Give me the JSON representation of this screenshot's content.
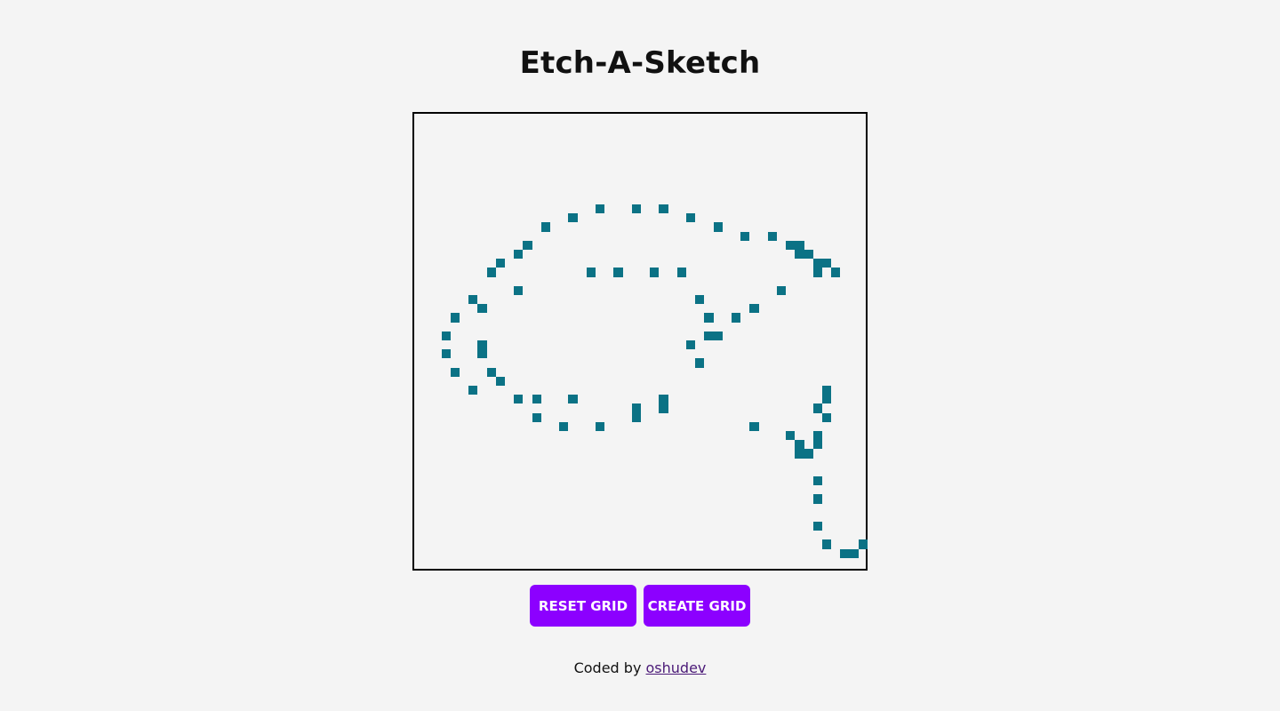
{
  "title": "Etch-A-Sketch",
  "grid": {
    "size": 50,
    "fill_color": "#0b7285",
    "background_color": "#f4f4f4",
    "filled_cells": [
      [
        20,
        10
      ],
      [
        24,
        10
      ],
      [
        27,
        10
      ],
      [
        17,
        11
      ],
      [
        30,
        11
      ],
      [
        14,
        12
      ],
      [
        33,
        12
      ],
      [
        36,
        13
      ],
      [
        39,
        13
      ],
      [
        12,
        14
      ],
      [
        41,
        14
      ],
      [
        42,
        14
      ],
      [
        11,
        15
      ],
      [
        42,
        15
      ],
      [
        43,
        15
      ],
      [
        9,
        16
      ],
      [
        44,
        16
      ],
      [
        45,
        16
      ],
      [
        8,
        17
      ],
      [
        19,
        17
      ],
      [
        22,
        17
      ],
      [
        26,
        17
      ],
      [
        29,
        17
      ],
      [
        44,
        17
      ],
      [
        46,
        17
      ],
      [
        11,
        19
      ],
      [
        40,
        19
      ],
      [
        6,
        20
      ],
      [
        31,
        20
      ],
      [
        7,
        21
      ],
      [
        37,
        21
      ],
      [
        4,
        22
      ],
      [
        32,
        22
      ],
      [
        35,
        22
      ],
      [
        3,
        24
      ],
      [
        32,
        24
      ],
      [
        33,
        24
      ],
      [
        7,
        25
      ],
      [
        30,
        25
      ],
      [
        3,
        26
      ],
      [
        7,
        26
      ],
      [
        31,
        27
      ],
      [
        4,
        28
      ],
      [
        8,
        28
      ],
      [
        9,
        29
      ],
      [
        6,
        30
      ],
      [
        45,
        30
      ],
      [
        11,
        31
      ],
      [
        13,
        31
      ],
      [
        17,
        31
      ],
      [
        27,
        31
      ],
      [
        45,
        31
      ],
      [
        24,
        32
      ],
      [
        27,
        32
      ],
      [
        44,
        32
      ],
      [
        13,
        33
      ],
      [
        24,
        33
      ],
      [
        45,
        33
      ],
      [
        16,
        34
      ],
      [
        20,
        34
      ],
      [
        37,
        34
      ],
      [
        41,
        35
      ],
      [
        44,
        35
      ],
      [
        42,
        36
      ],
      [
        44,
        36
      ],
      [
        42,
        37
      ],
      [
        43,
        37
      ],
      [
        44,
        40
      ],
      [
        44,
        42
      ],
      [
        44,
        45
      ],
      [
        45,
        47
      ],
      [
        49,
        47
      ],
      [
        47,
        48
      ],
      [
        48,
        48
      ]
    ]
  },
  "buttons": {
    "reset_label": "RESET GRID",
    "create_label": "CREATE GRID",
    "color": "#8c00ff"
  },
  "footer": {
    "prefix": "Coded by",
    "link_text": "oshudev"
  }
}
